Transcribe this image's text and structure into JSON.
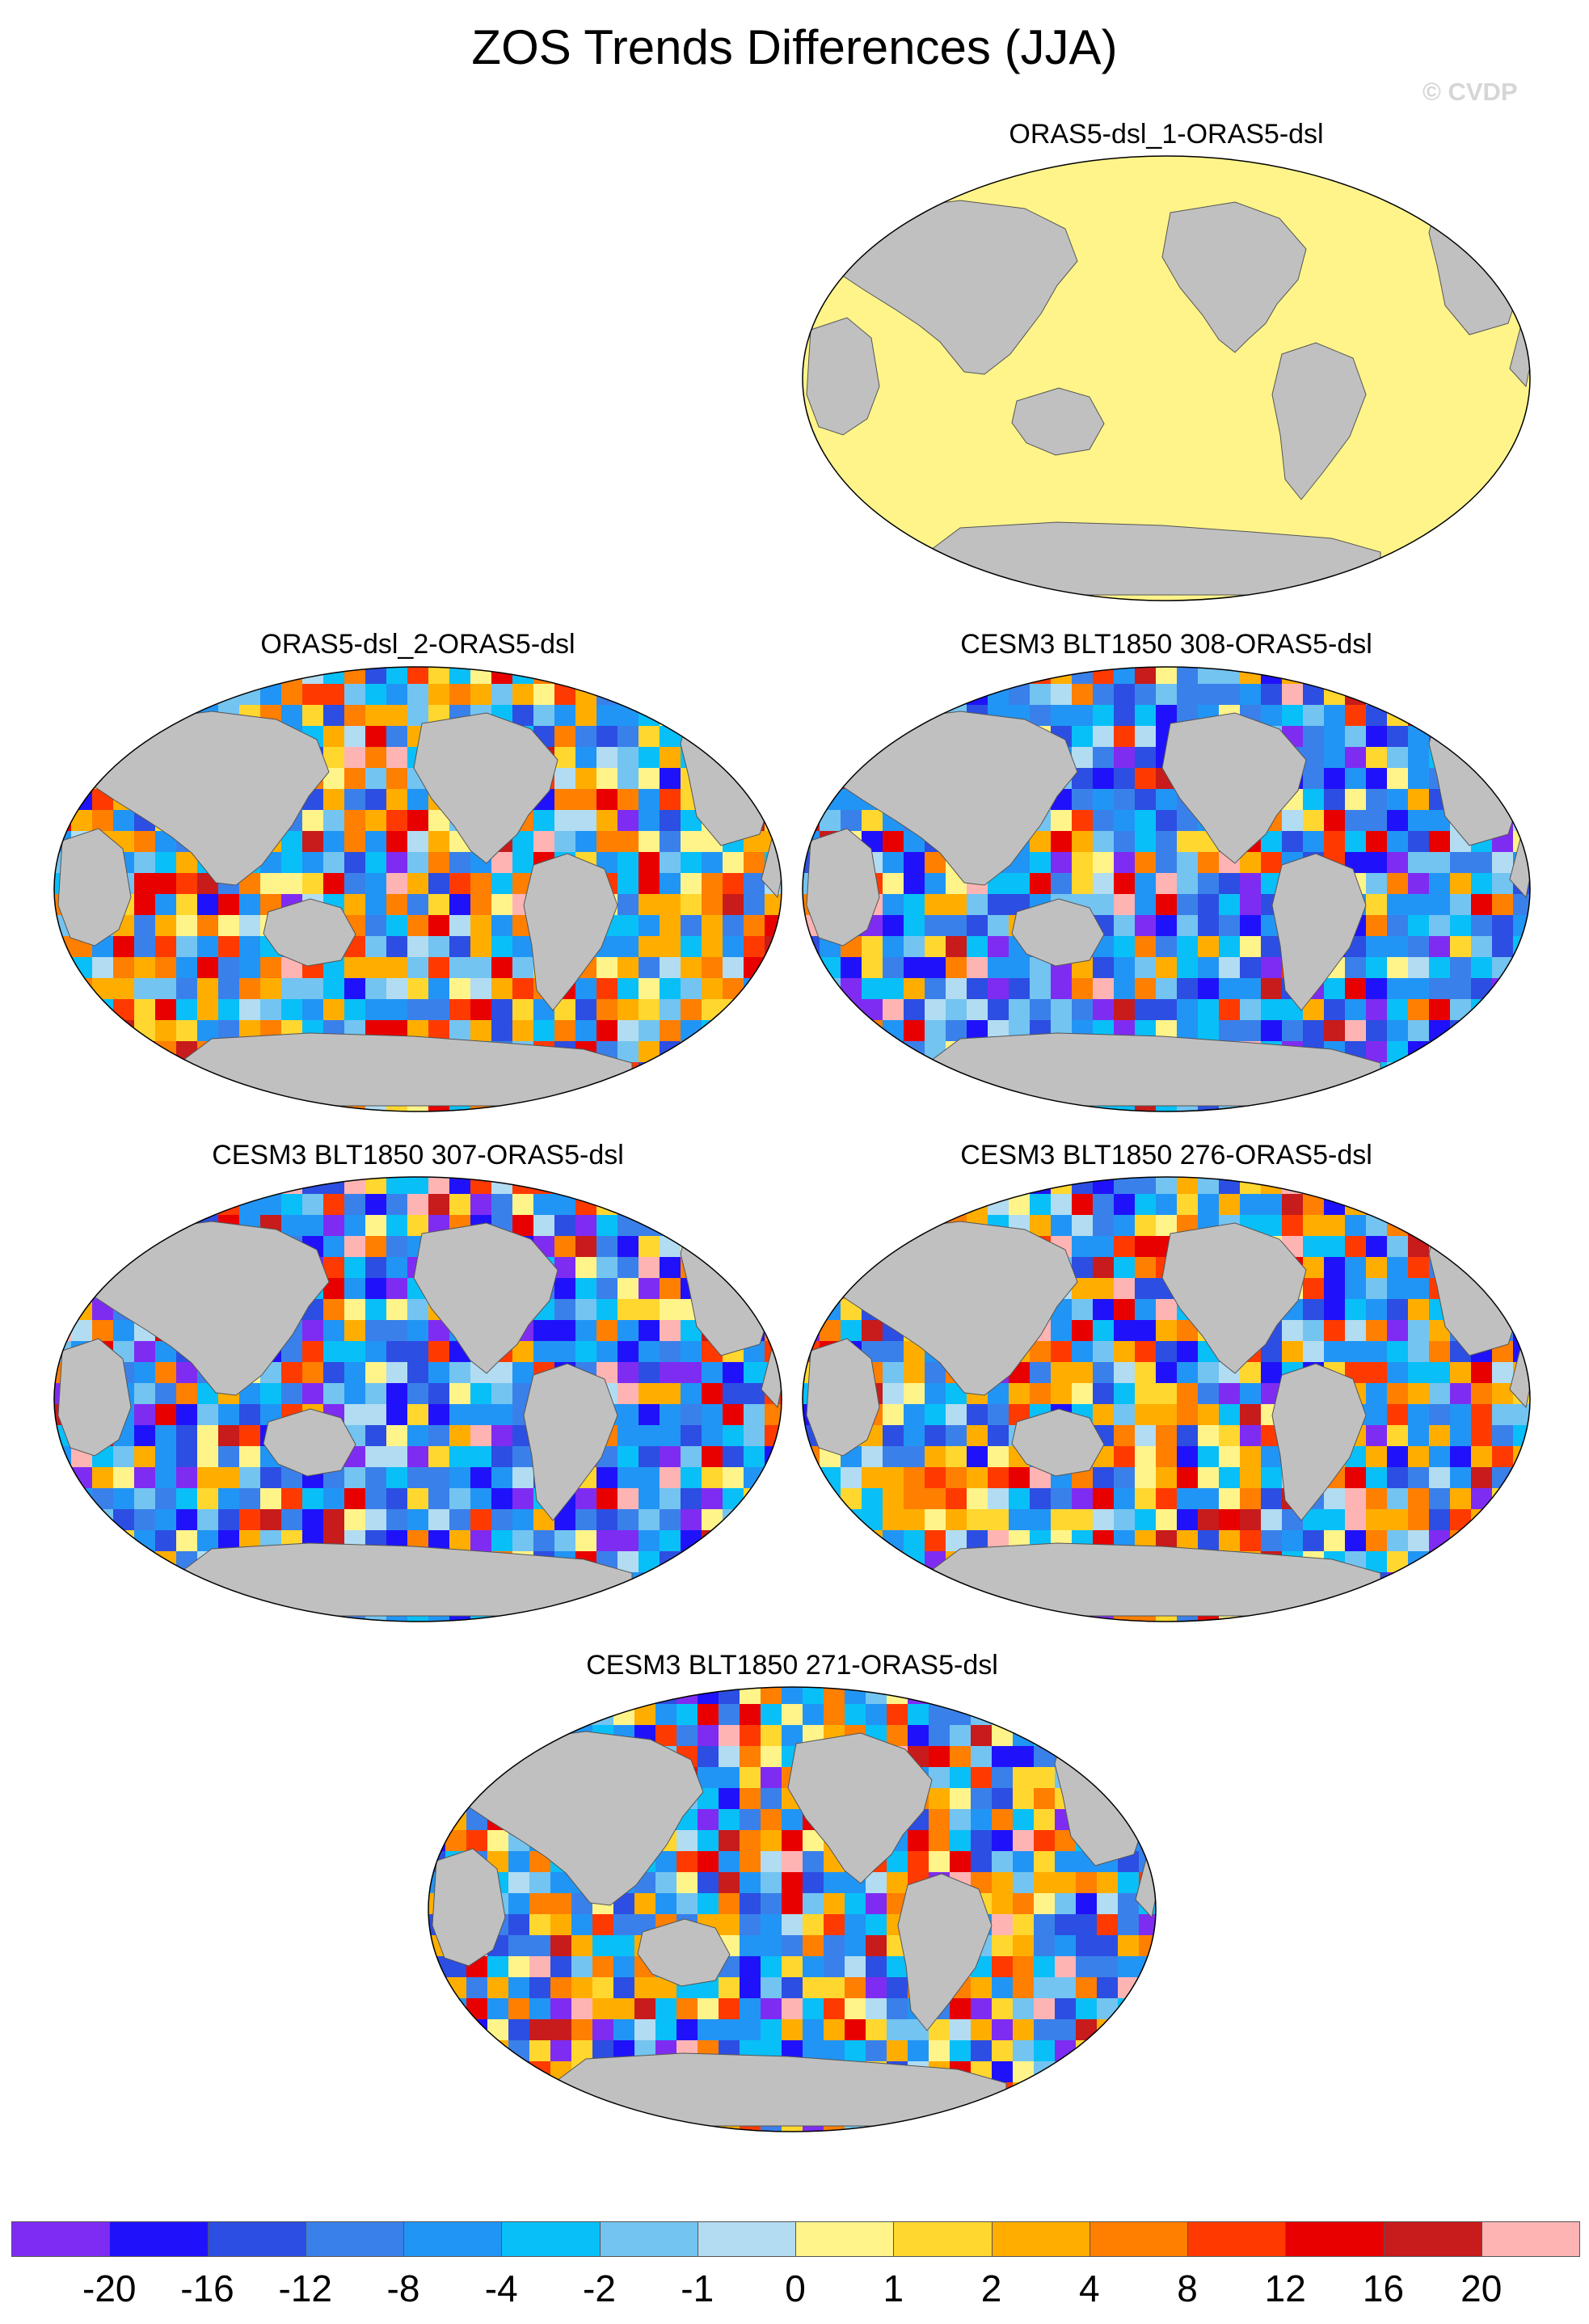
{
  "title": "ZOS Trends Differences (JJA)",
  "copyright": "© CVDP",
  "colors": {
    "land": "#c0c0c0",
    "panel1_fill": "#fff48a",
    "ocean_base": "#2aa0f0"
  },
  "panels": [
    {
      "id": "p1",
      "label": "ORAS5-dsl_1-ORAS5-dsl",
      "pattern": "uniform"
    },
    {
      "id": "p2",
      "label": "ORAS5-dsl_2-ORAS5-dsl",
      "pattern": "mixed-warm"
    },
    {
      "id": "p3",
      "label": "CESM3 BLT1850 308-ORAS5-dsl",
      "pattern": "mostly-cool"
    },
    {
      "id": "p4",
      "label": "CESM3 BLT1850 307-ORAS5-dsl",
      "pattern": "mostly-cool"
    },
    {
      "id": "p5",
      "label": "CESM3 BLT1850 276-ORAS5-dsl",
      "pattern": "warm-pacific"
    },
    {
      "id": "p6",
      "label": "CESM3 BLT1850 271-ORAS5-dsl",
      "pattern": "warm-pacific"
    }
  ],
  "colorbar": {
    "colors": [
      "#7f2cf2",
      "#1f12fa",
      "#2c4ee2",
      "#3a80ea",
      "#2195f5",
      "#09bff8",
      "#73c4f1",
      "#b2dcf1",
      "#fff48a",
      "#ffd72f",
      "#ffae00",
      "#ff7f00",
      "#ff3a00",
      "#e80000",
      "#c81b1b",
      "#ffb4b4"
    ],
    "labels": [
      "-20",
      "-16",
      "-12",
      "-8",
      "-4",
      "-2",
      "-1",
      "0",
      "1",
      "2",
      "4",
      "8",
      "12",
      "16",
      "20"
    ]
  }
}
